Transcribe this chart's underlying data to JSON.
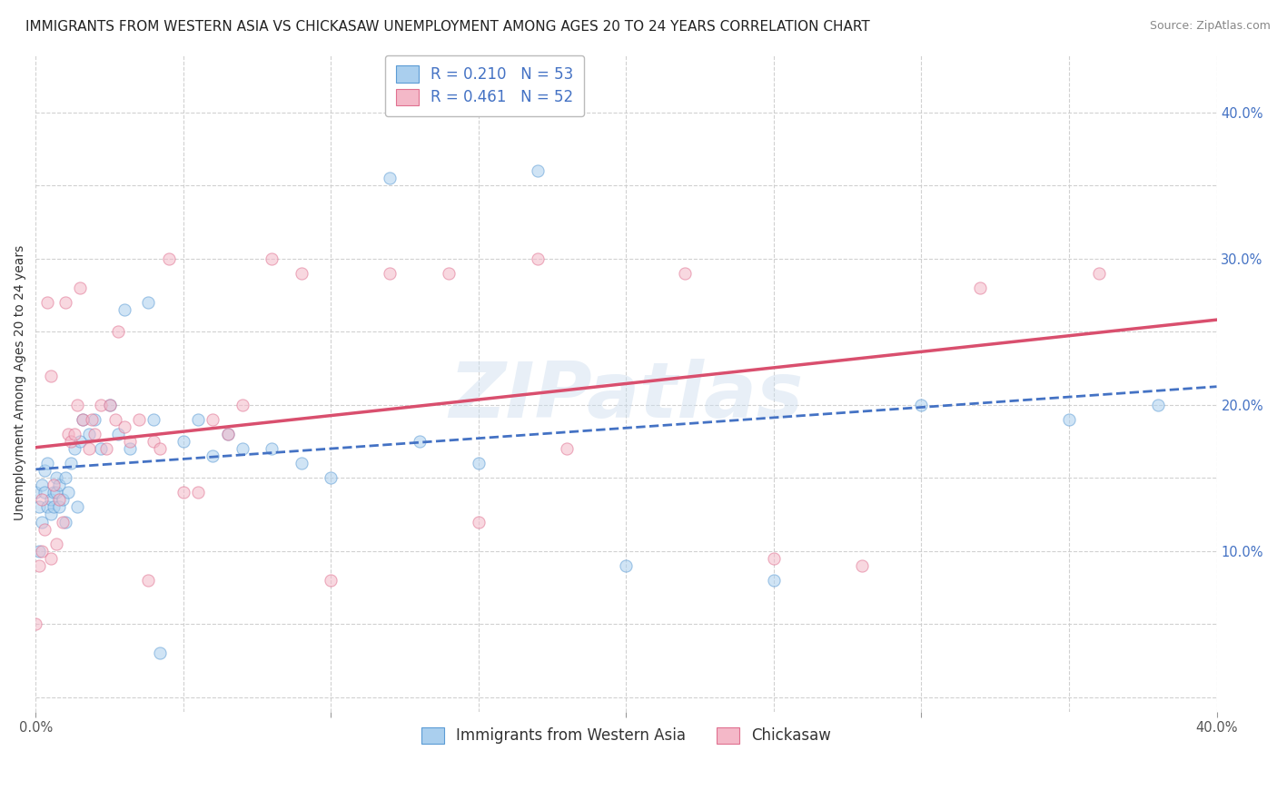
{
  "title": "IMMIGRANTS FROM WESTERN ASIA VS CHICKASAW UNEMPLOYMENT AMONG AGES 20 TO 24 YEARS CORRELATION CHART",
  "source": "Source: ZipAtlas.com",
  "ylabel": "Unemployment Among Ages 20 to 24 years",
  "xlim": [
    0.0,
    0.4
  ],
  "ylim": [
    -0.01,
    0.44
  ],
  "legend_bottom": [
    "Immigrants from Western Asia",
    "Chickasaw"
  ],
  "watermark": "ZIPatlas",
  "background_color": "#FFFFFF",
  "grid_color": "#CCCCCC",
  "title_fontsize": 11,
  "axis_label_fontsize": 10,
  "tick_fontsize": 10.5,
  "legend_fontsize": 12,
  "scatter_size": 90,
  "scatter_alpha": 0.55,
  "series": [
    {
      "name": "Immigrants from Western Asia",
      "R": 0.21,
      "N": 53,
      "color": "#AACFEE",
      "edge_color": "#5B9BD5",
      "line_color": "#4472C4",
      "line_style": "dashed",
      "x": [
        0.0,
        0.001,
        0.001,
        0.002,
        0.002,
        0.003,
        0.003,
        0.004,
        0.004,
        0.005,
        0.005,
        0.006,
        0.006,
        0.007,
        0.007,
        0.008,
        0.008,
        0.009,
        0.01,
        0.01,
        0.011,
        0.012,
        0.013,
        0.014,
        0.015,
        0.016,
        0.018,
        0.02,
        0.022,
        0.025,
        0.028,
        0.03,
        0.032,
        0.038,
        0.04,
        0.042,
        0.05,
        0.055,
        0.06,
        0.065,
        0.07,
        0.08,
        0.09,
        0.1,
        0.12,
        0.13,
        0.15,
        0.17,
        0.2,
        0.25,
        0.3,
        0.35,
        0.38
      ],
      "y": [
        0.14,
        0.1,
        0.13,
        0.12,
        0.145,
        0.14,
        0.155,
        0.16,
        0.13,
        0.135,
        0.125,
        0.13,
        0.14,
        0.15,
        0.14,
        0.145,
        0.13,
        0.135,
        0.15,
        0.12,
        0.14,
        0.16,
        0.17,
        0.13,
        0.175,
        0.19,
        0.18,
        0.19,
        0.17,
        0.2,
        0.18,
        0.265,
        0.17,
        0.27,
        0.19,
        0.03,
        0.175,
        0.19,
        0.165,
        0.18,
        0.17,
        0.17,
        0.16,
        0.15,
        0.355,
        0.175,
        0.16,
        0.36,
        0.09,
        0.08,
        0.2,
        0.19,
        0.2
      ]
    },
    {
      "name": "Chickasaw",
      "R": 0.461,
      "N": 52,
      "color": "#F4B8C8",
      "edge_color": "#E07090",
      "line_color": "#D94F6E",
      "line_style": "solid",
      "x": [
        0.0,
        0.001,
        0.002,
        0.002,
        0.003,
        0.004,
        0.005,
        0.005,
        0.006,
        0.007,
        0.008,
        0.009,
        0.01,
        0.011,
        0.012,
        0.013,
        0.014,
        0.015,
        0.016,
        0.018,
        0.019,
        0.02,
        0.022,
        0.024,
        0.025,
        0.027,
        0.028,
        0.03,
        0.032,
        0.035,
        0.038,
        0.04,
        0.042,
        0.045,
        0.05,
        0.055,
        0.06,
        0.065,
        0.07,
        0.08,
        0.09,
        0.1,
        0.12,
        0.14,
        0.15,
        0.17,
        0.18,
        0.22,
        0.25,
        0.28,
        0.32,
        0.36
      ],
      "y": [
        0.05,
        0.09,
        0.135,
        0.1,
        0.115,
        0.27,
        0.22,
        0.095,
        0.145,
        0.105,
        0.135,
        0.12,
        0.27,
        0.18,
        0.175,
        0.18,
        0.2,
        0.28,
        0.19,
        0.17,
        0.19,
        0.18,
        0.2,
        0.17,
        0.2,
        0.19,
        0.25,
        0.185,
        0.175,
        0.19,
        0.08,
        0.175,
        0.17,
        0.3,
        0.14,
        0.14,
        0.19,
        0.18,
        0.2,
        0.3,
        0.29,
        0.08,
        0.29,
        0.29,
        0.12,
        0.3,
        0.17,
        0.29,
        0.095,
        0.09,
        0.28,
        0.29
      ]
    }
  ]
}
